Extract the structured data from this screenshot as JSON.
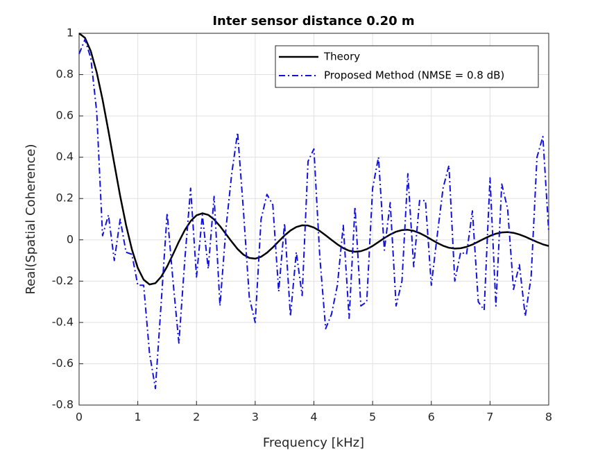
{
  "chart_data": {
    "type": "line",
    "title": "Inter sensor distance 0.20 m",
    "xlabel": "Frequency [kHz]",
    "ylabel": "Real(Spatial Coherence)",
    "x": [
      0,
      0.1,
      0.2,
      0.3,
      0.4,
      0.5,
      0.6,
      0.7,
      0.8,
      0.9,
      1,
      1.1,
      1.2,
      1.3,
      1.4,
      1.5,
      1.6,
      1.7,
      1.8,
      1.9,
      2,
      2.1,
      2.2,
      2.3,
      2.4,
      2.5,
      2.6,
      2.7,
      2.8,
      2.9,
      3,
      3.1,
      3.2,
      3.3,
      3.4,
      3.5,
      3.6,
      3.7,
      3.8,
      3.9,
      4,
      4.1,
      4.2,
      4.3,
      4.4,
      4.5,
      4.6,
      4.7,
      4.8,
      4.9,
      5,
      5.1,
      5.2,
      5.3,
      5.4,
      5.5,
      5.6,
      5.7,
      5.8,
      5.9,
      6,
      6.1,
      6.2,
      6.3,
      6.4,
      6.5,
      6.6,
      6.7,
      6.8,
      6.9,
      7,
      7.1,
      7.2,
      7.3,
      7.4,
      7.5,
      7.6,
      7.7,
      7.8,
      7.9,
      8
    ],
    "series": [
      {
        "name": "Theory",
        "color": "#000000",
        "dash": "solid",
        "values": [
          1,
          0.978,
          0.913,
          0.811,
          0.679,
          0.527,
          0.368,
          0.212,
          0.0715,
          -0.047,
          -0.136,
          -0.193,
          -0.216,
          -0.21,
          -0.178,
          -0.129,
          -0.07,
          -0.0088,
          0.0466,
          0.0907,
          0.1185,
          0.1285,
          0.1209,
          0.0987,
          0.0662,
          0.0285,
          -0.009,
          -0.0447,
          -0.0718,
          -0.0877,
          -0.091,
          -0.0819,
          -0.0627,
          -0.0367,
          -0.0075,
          0.0211,
          0.045,
          0.062,
          0.0702,
          0.0693,
          0.0594,
          0.043,
          0.022,
          -0.0003,
          -0.0219,
          -0.04,
          -0.0528,
          -0.0578,
          -0.0549,
          -0.0451,
          -0.0298,
          -0.0107,
          0.0087,
          0.0259,
          0.0394,
          0.0471,
          0.0486,
          0.0433,
          0.0327,
          0.0183,
          0.0014,
          -0.0148,
          -0.0286,
          -0.0383,
          -0.0424,
          -0.0407,
          -0.0339,
          -0.0228,
          -0.0088,
          0.0057,
          0.0191,
          0.0296,
          0.0358,
          0.0373,
          0.0338,
          0.0258,
          0.0151,
          0.0021,
          -0.0105,
          -0.0218,
          -0.0297
        ]
      },
      {
        "name": "Proposed Method (NMSE = 0.8 dB)",
        "color": "#1010e0",
        "dash": "dashdot",
        "values": [
          0.9,
          0.97,
          0.88,
          0.62,
          0.02,
          0.12,
          -0.1,
          0.1,
          -0.06,
          -0.07,
          -0.22,
          -0.22,
          -0.55,
          -0.72,
          -0.3,
          0.13,
          -0.2,
          -0.5,
          -0.1,
          0.25,
          -0.18,
          0.12,
          -0.14,
          0.21,
          -0.32,
          0.05,
          0.32,
          0.52,
          0.14,
          -0.28,
          -0.4,
          0.1,
          0.22,
          0.17,
          -0.25,
          0.08,
          -0.37,
          -0.06,
          -0.27,
          0.38,
          0.44,
          -0.08,
          -0.43,
          -0.36,
          -0.22,
          0.07,
          -0.38,
          0.16,
          -0.32,
          -0.3,
          0.25,
          0.4,
          -0.05,
          0.18,
          -0.32,
          -0.2,
          0.32,
          -0.13,
          0.19,
          0.19,
          -0.22,
          0.02,
          0.25,
          0.36,
          -0.2,
          -0.06,
          -0.07,
          0.14,
          -0.3,
          -0.34,
          0.3,
          -0.32,
          0.27,
          0.15,
          -0.24,
          -0.12,
          -0.37,
          -0.18,
          0.4,
          0.5,
          0.04
        ]
      }
    ],
    "xlim": [
      0,
      8
    ],
    "xticks": [
      0,
      1,
      2,
      3,
      4,
      5,
      6,
      7,
      8
    ],
    "ylim": [
      -0.8,
      1
    ],
    "yticks": [
      -0.8,
      -0.6,
      -0.4,
      -0.2,
      0,
      0.2,
      0.4,
      0.6,
      0.8,
      1
    ],
    "grid": true,
    "legend": "northeast"
  }
}
